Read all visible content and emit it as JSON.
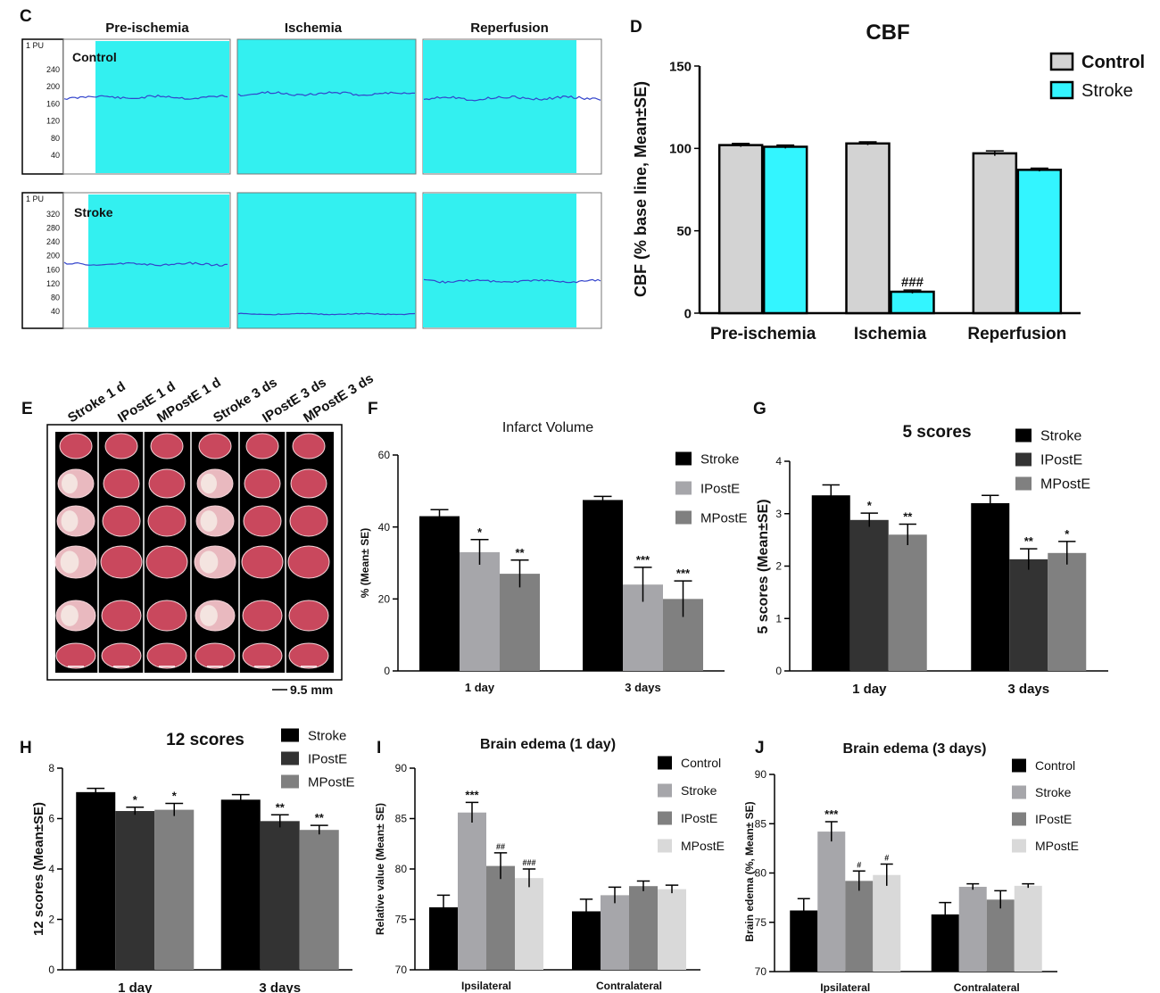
{
  "panel_labels": {
    "C": "C",
    "D": "D",
    "E": "E",
    "F": "F",
    "G": "G",
    "H": "H",
    "I": "I",
    "J": "J"
  },
  "panel_c": {
    "phases": [
      "Pre-ischemia",
      "Ischemia",
      "Reperfusion"
    ],
    "unit": "1 PU",
    "control": {
      "label": "Control",
      "ticks": [
        "240",
        "200",
        "160",
        "120",
        "80",
        "40"
      ]
    },
    "stroke": {
      "label": "Stroke",
      "ticks": [
        "320",
        "280",
        "240",
        "200",
        "160",
        "120",
        "80",
        "40"
      ]
    },
    "colors": {
      "fill": "#33f0f0",
      "trace": "#3344cc"
    }
  },
  "panel_e": {
    "columns": [
      "Stroke 1 d",
      "IPostE  1 d",
      "MPostE  1 d",
      "Stroke 3 ds",
      "IPostE  3 ds",
      "MPostE  3 ds"
    ],
    "scale_bar": "9.5 mm",
    "slices_per_column": 6
  },
  "chart_data": [
    {
      "id": "D",
      "type": "bar",
      "title": "CBF",
      "categories": [
        "Pre-ischemia",
        "Ischemia",
        "Reperfusion"
      ],
      "series": [
        {
          "name": "Control",
          "color": "#d3d3d3",
          "values": [
            102,
            103,
            97
          ],
          "errors": [
            1,
            1,
            1.5
          ]
        },
        {
          "name": "Stroke",
          "color": "#33f5ff",
          "values": [
            101,
            13,
            87
          ],
          "errors": [
            1,
            1,
            1
          ]
        }
      ],
      "annotations": [
        {
          "category": 1,
          "series": 1,
          "text": "###"
        }
      ],
      "ylabel": "CBF (% base line, Mean±SE)",
      "xlabel": "",
      "ylim": [
        0,
        150
      ],
      "yticks": [
        0,
        50,
        100,
        150
      ],
      "legend": "top-right"
    },
    {
      "id": "F",
      "type": "bar",
      "title": "Infarct Volume",
      "categories": [
        "1 day",
        "3 days"
      ],
      "series": [
        {
          "name": "Stroke",
          "color": "#000000",
          "values": [
            43,
            47.5
          ],
          "errors": [
            1.8,
            1
          ]
        },
        {
          "name": "IPostE",
          "color": "#a6a6aa",
          "values": [
            33,
            24
          ],
          "errors": [
            3.5,
            4.8
          ]
        },
        {
          "name": "MPostE",
          "color": "#808080",
          "values": [
            27,
            20
          ],
          "errors": [
            3.8,
            5
          ]
        }
      ],
      "annotations": [
        {
          "category": 0,
          "series": 1,
          "text": "*"
        },
        {
          "category": 0,
          "series": 2,
          "text": "**"
        },
        {
          "category": 1,
          "series": 1,
          "text": "***"
        },
        {
          "category": 1,
          "series": 2,
          "text": "***"
        }
      ],
      "ylabel": "% (Mean± SE)",
      "xlabel": "",
      "ylim": [
        0,
        60
      ],
      "yticks": [
        0,
        20,
        40,
        60
      ],
      "legend": "top-right"
    },
    {
      "id": "G",
      "type": "bar",
      "title": "5 scores",
      "categories": [
        "1 day",
        "3 days"
      ],
      "series": [
        {
          "name": "Stroke",
          "color": "#000000",
          "values": [
            3.35,
            3.2
          ],
          "errors": [
            0.2,
            0.15
          ]
        },
        {
          "name": "IPostE",
          "color": "#333333",
          "values": [
            2.88,
            2.13
          ],
          "errors": [
            0.13,
            0.2
          ]
        },
        {
          "name": "MPostE",
          "color": "#808080",
          "values": [
            2.6,
            2.25
          ],
          "errors": [
            0.2,
            0.22
          ]
        }
      ],
      "annotations": [
        {
          "category": 0,
          "series": 1,
          "text": "*"
        },
        {
          "category": 0,
          "series": 2,
          "text": "**"
        },
        {
          "category": 1,
          "series": 1,
          "text": "**"
        },
        {
          "category": 1,
          "series": 2,
          "text": "*"
        }
      ],
      "ylabel": "5 scores  (Mean±SE)",
      "xlabel": "",
      "ylim": [
        0,
        4
      ],
      "yticks": [
        0,
        1,
        2,
        3,
        4
      ],
      "legend": "top-right"
    },
    {
      "id": "H",
      "type": "bar",
      "title": "12 scores",
      "categories": [
        "1 day",
        "3 days"
      ],
      "series": [
        {
          "name": "Stroke",
          "color": "#000000",
          "values": [
            7.05,
            6.75
          ],
          "errors": [
            0.15,
            0.2
          ]
        },
        {
          "name": "IPostE",
          "color": "#333333",
          "values": [
            6.3,
            5.9
          ],
          "errors": [
            0.15,
            0.25
          ]
        },
        {
          "name": "MPostE",
          "color": "#808080",
          "values": [
            6.35,
            5.55
          ],
          "errors": [
            0.25,
            0.18
          ]
        }
      ],
      "annotations": [
        {
          "category": 0,
          "series": 1,
          "text": "*"
        },
        {
          "category": 0,
          "series": 2,
          "text": "*"
        },
        {
          "category": 1,
          "series": 1,
          "text": "**"
        },
        {
          "category": 1,
          "series": 2,
          "text": "**"
        }
      ],
      "ylabel": "12 scores  (Mean±SE)",
      "xlabel": "",
      "ylim": [
        0,
        8
      ],
      "yticks": [
        0,
        2,
        4,
        6,
        8
      ],
      "legend": "top-right"
    },
    {
      "id": "I",
      "type": "bar",
      "title": "Brain edema (1 day)",
      "categories": [
        "Ipsilateral",
        "Contralateral"
      ],
      "series": [
        {
          "name": "Control",
          "color": "#000000",
          "values": [
            76.2,
            75.8
          ],
          "errors": [
            1.2,
            1.2
          ]
        },
        {
          "name": "Stroke",
          "color": "#a6a6aa",
          "values": [
            85.6,
            77.4
          ],
          "errors": [
            1,
            0.8
          ]
        },
        {
          "name": "IPostE",
          "color": "#808080",
          "values": [
            80.3,
            78.3
          ],
          "errors": [
            1.3,
            0.5
          ]
        },
        {
          "name": "MPostE",
          "color": "#d9d9d9",
          "values": [
            79.1,
            78
          ],
          "errors": [
            0.9,
            0.4
          ]
        }
      ],
      "annotations": [
        {
          "category": 0,
          "series": 1,
          "text": "***"
        },
        {
          "category": 0,
          "series": 2,
          "text": "##"
        },
        {
          "category": 0,
          "series": 3,
          "text": "###"
        }
      ],
      "ylabel": "Relative value (Mean± SE)",
      "xlabel": "",
      "ylim": [
        70,
        90
      ],
      "yticks": [
        70,
        75,
        80,
        85,
        90
      ],
      "legend": "top-right"
    },
    {
      "id": "J",
      "type": "bar",
      "title": "Brain edema (3 days)",
      "categories": [
        "Ipsilateral",
        "Contralateral"
      ],
      "series": [
        {
          "name": "Control",
          "color": "#000000",
          "values": [
            76.2,
            75.8
          ],
          "errors": [
            1.2,
            1.2
          ]
        },
        {
          "name": "Stroke",
          "color": "#a6a6aa",
          "values": [
            84.2,
            78.6
          ],
          "errors": [
            1,
            0.3
          ]
        },
        {
          "name": "IPostE",
          "color": "#808080",
          "values": [
            79.2,
            77.3
          ],
          "errors": [
            1,
            0.9
          ]
        },
        {
          "name": "MPostE",
          "color": "#d9d9d9",
          "values": [
            79.8,
            78.7
          ],
          "errors": [
            1.1,
            0.2
          ]
        }
      ],
      "annotations": [
        {
          "category": 0,
          "series": 1,
          "text": "***"
        },
        {
          "category": 0,
          "series": 2,
          "text": "#"
        },
        {
          "category": 0,
          "series": 3,
          "text": "#"
        }
      ],
      "ylabel": "Brain edema (%, Mean± SE)",
      "xlabel": "",
      "ylim": [
        70,
        90
      ],
      "yticks": [
        70,
        75,
        80,
        85,
        90
      ],
      "legend": "top-right"
    }
  ]
}
